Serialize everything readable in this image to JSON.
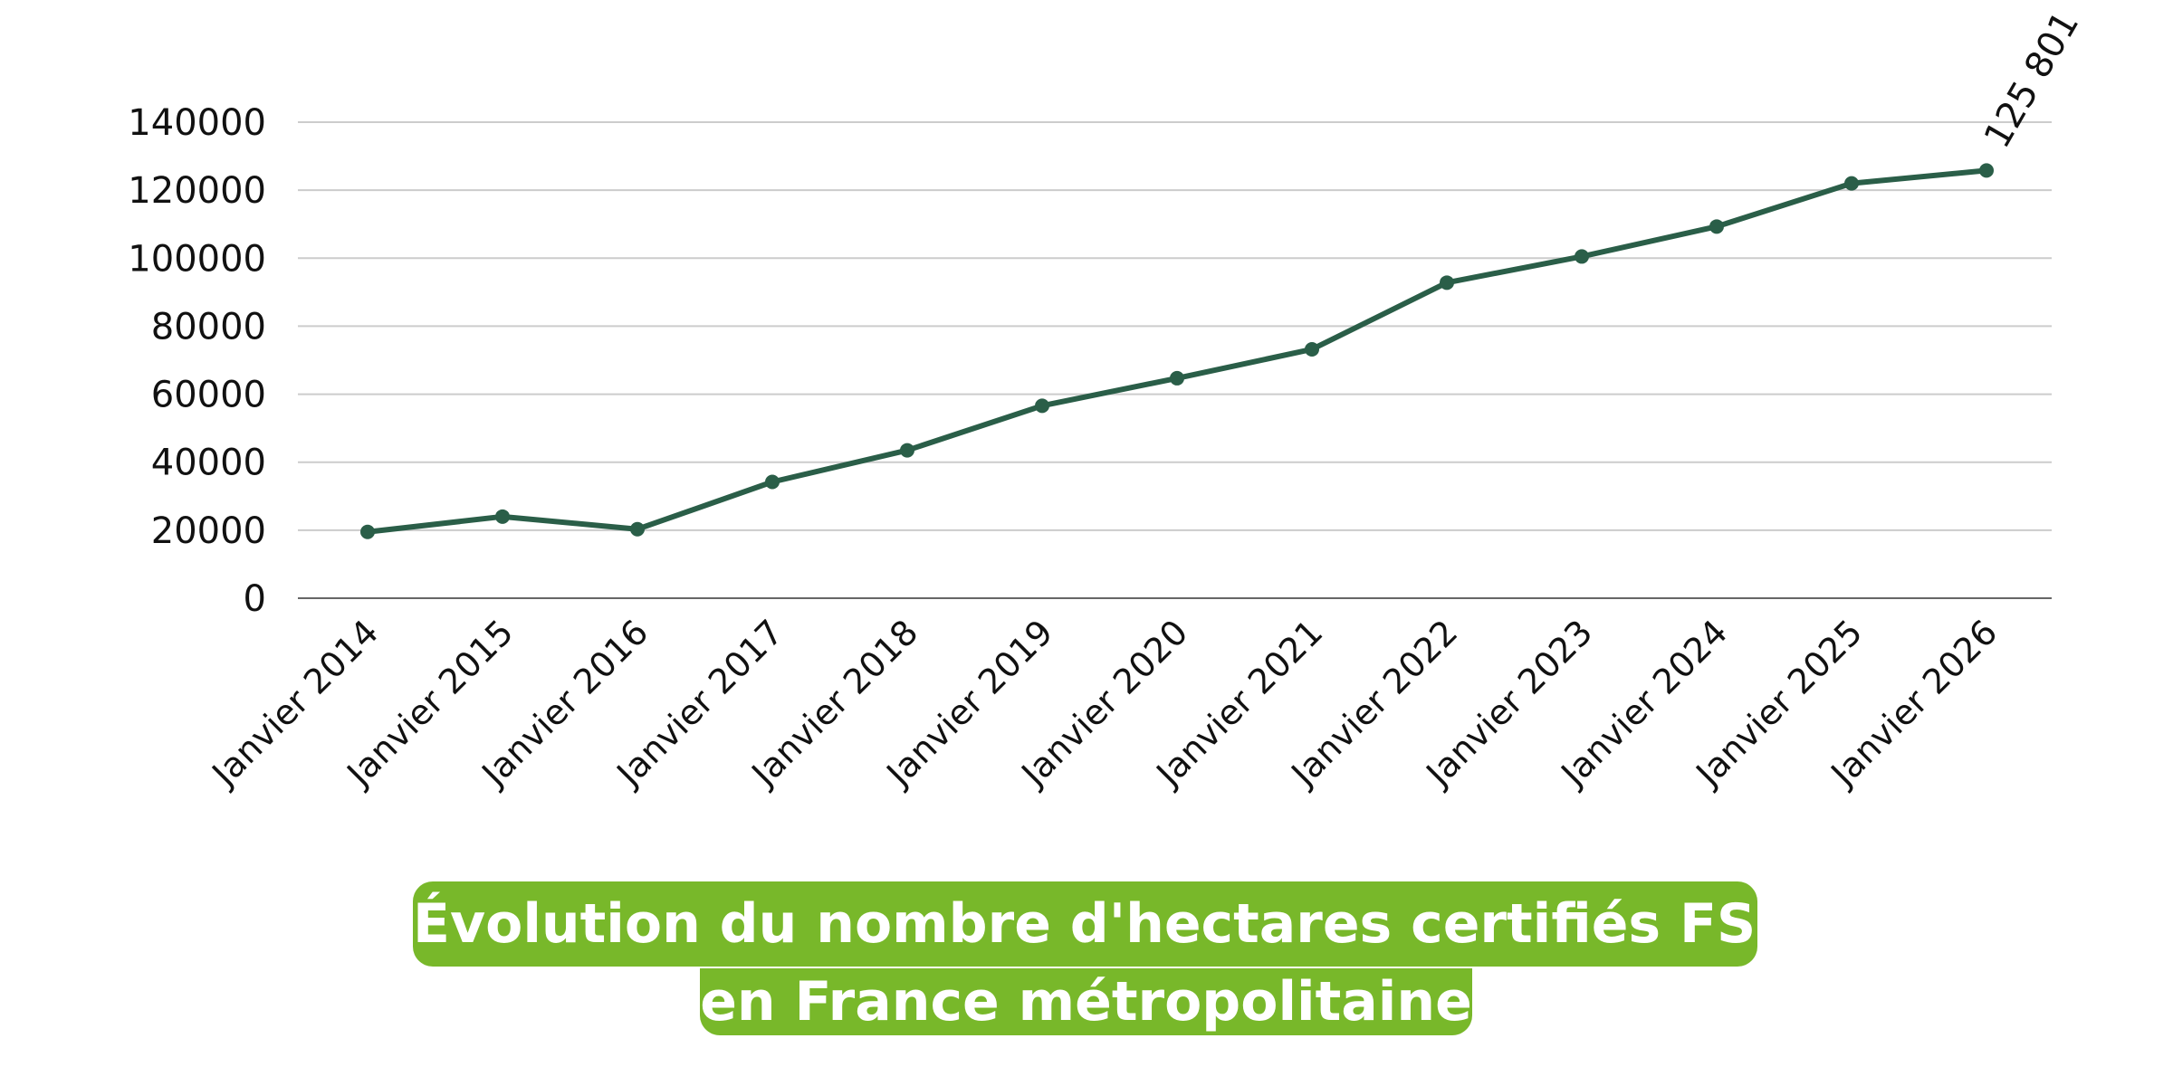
{
  "chart_data": {
    "type": "line",
    "title": [
      "Évolution du nombre d'hectares certifiés FSC",
      "en France métropolitaine"
    ],
    "xlabel": "",
    "ylabel": "",
    "categories": [
      "Janvier 2014",
      "Janvier 2015",
      "Janvier 2016",
      "Janvier 2017",
      "Janvier 2018",
      "Janvier 2019",
      "Janvier 2020",
      "Janvier 2021",
      "Janvier 2022",
      "Janvier 2023",
      "Janvier 2024",
      "Janvier 2025",
      "Janvier 2026"
    ],
    "series": [
      {
        "values": [
          19500,
          24000,
          20300,
          34200,
          43500,
          56600,
          64700,
          73200,
          92800,
          100500,
          109300,
          122000,
          125801
        ]
      }
    ],
    "ylim": [
      0,
      140000
    ],
    "yticks": [
      "0",
      "20000",
      "40000",
      "60000",
      "80000",
      "100000",
      "120000",
      "140000"
    ],
    "annotations": [
      {
        "category": "Janvier 2026",
        "text": "125 801"
      }
    ],
    "grid": true,
    "legend": "none",
    "colors": {
      "line": "#2a5e48",
      "title_bg": "#78b82a",
      "grid": "#cccccc",
      "axis": "#666666"
    }
  }
}
